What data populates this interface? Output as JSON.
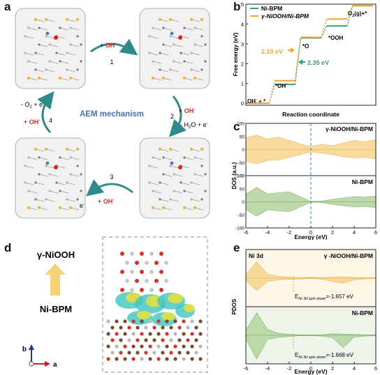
{
  "panels": {
    "a": "a",
    "b": "b",
    "c": "c",
    "d": "d",
    "e": "e"
  },
  "panel_a": {
    "center": "AEM mechanism",
    "step1": {
      "plus": "+ ",
      "species": "OH",
      "sup": "-",
      "num": "1"
    },
    "step2": {
      "plus": "+ ",
      "species": "OH",
      "sup": "-",
      "num": "2",
      "minus": "- H",
      "sub": "2",
      "rest": "O + e",
      "sup2": "-"
    },
    "step3": {
      "plus": "+ ",
      "species": "OH",
      "sup": "-",
      "num": "3",
      "e": "e",
      "esup": "-"
    },
    "step4": {
      "line1": "- O",
      "sub": "2",
      "line1b": " + e",
      "sup": "-",
      "plus": "+ ",
      "species": "OH",
      "sup2": "-",
      "num": "4"
    },
    "colors": {
      "oh": "#e0241b",
      "arrow": "#2f8a8a",
      "center": "#4a6fb0",
      "panel_bg": "#f2f1f0",
      "panel_border": "#9a9a9a"
    }
  },
  "panel_b": {
    "legend": [
      "Ni-BPM",
      "γ-NiOOH/Ni-BPM"
    ],
    "ylabel": "Free energy (eV)",
    "xlabel": "Reaction coordinate",
    "yticks": [
      "0",
      "1",
      "2",
      "3",
      "4",
      "5"
    ],
    "labels": {
      "start": "OH",
      "start_sup": "-",
      "start_rest": " + *",
      "oh": "*OH",
      "oh_sup": "-",
      "o": "*O",
      "ooh": "*OOH",
      "end": "O",
      "end_sub": "2",
      "end_rest": "(g)+*"
    },
    "barrier1": "2.19 eV",
    "barrier2": "2.35 eV",
    "colors": {
      "nibpm": "#3a9d7a",
      "niooh": "#f0a830"
    }
  },
  "chart_data": [
    {
      "type": "line",
      "title": "",
      "xlabel": "Reaction coordinate",
      "ylabel": "Free energy (eV)",
      "ylim": [
        -0.1,
        5
      ],
      "categories": [
        "OH- + *",
        "*OH-",
        "*O",
        "*OOH",
        "O2(g)+*"
      ],
      "series": [
        {
          "name": "Ni-BPM",
          "values": [
            0,
            0.95,
            3.3,
            3.9,
            4.92
          ]
        },
        {
          "name": "γ-NiOOH/Ni-BPM",
          "values": [
            0,
            1.14,
            3.33,
            4.25,
            4.92
          ]
        }
      ]
    },
    {
      "type": "area",
      "title": "",
      "xlabel": "Energy (eV)",
      "ylabel": "DOS (a.u.)",
      "xlim": [
        -6,
        6
      ],
      "ylim": [
        -100,
        100
      ],
      "series": [
        {
          "name": "γ-NiOOH/Ni-BPM",
          "x": [
            -6,
            -5,
            -4,
            -3,
            -2,
            -1,
            0,
            1,
            2,
            3,
            4,
            5,
            6
          ],
          "up": [
            45,
            55,
            40,
            48,
            35,
            22,
            12,
            20,
            15,
            25,
            35,
            30,
            38
          ],
          "down": [
            -45,
            -55,
            -42,
            -40,
            -30,
            -20,
            -10,
            -14,
            -20,
            -28,
            -32,
            -30,
            -36
          ]
        },
        {
          "name": "Ni-BPM",
          "x": [
            -6,
            -5,
            -4,
            -3,
            -2,
            -1,
            0,
            1,
            2,
            3,
            4,
            5,
            6
          ],
          "up": [
            30,
            55,
            30,
            35,
            38,
            20,
            2,
            3,
            10,
            15,
            20,
            18,
            22
          ],
          "down": [
            -30,
            -55,
            -30,
            -35,
            -38,
            -20,
            -2,
            -3,
            -10,
            -15,
            -20,
            -18,
            -22
          ]
        }
      ]
    },
    {
      "type": "area",
      "title": "",
      "xlabel": "Energy (eV)",
      "ylabel": "PDOS",
      "xlim": [
        -6,
        6
      ],
      "series": [
        {
          "name": "γ-NiOOH/Ni-BPM",
          "x": [
            -6,
            -5,
            -4,
            -3,
            -2,
            -1,
            0,
            1,
            2,
            3,
            4,
            5,
            6
          ],
          "up": [
            8,
            40,
            10,
            4,
            2,
            1,
            2,
            1,
            2,
            3,
            2,
            1,
            1
          ],
          "down": [
            -6,
            -30,
            -8,
            -4,
            -3,
            -2,
            -1,
            -2,
            -8,
            -12,
            -4,
            -2,
            -1
          ]
        },
        {
          "name": "Ni-BPM",
          "x": [
            -6,
            -5,
            -4,
            -3,
            -2,
            -1,
            0,
            1,
            2,
            3,
            4,
            5,
            6
          ],
          "up": [
            12,
            55,
            14,
            5,
            2,
            1,
            1,
            1,
            4,
            3,
            2,
            1,
            1
          ],
          "down": [
            -10,
            -58,
            -10,
            -5,
            -3,
            -1,
            -1,
            -2,
            -6,
            -30,
            -4,
            -2,
            -1
          ]
        }
      ]
    }
  ],
  "panel_c": {
    "yticks": [
      "100",
      "75",
      "50",
      "25",
      "0",
      "-25",
      "-50",
      "-75",
      "-100"
    ],
    "xticks": [
      "-6",
      "-4",
      "-2",
      "0",
      "2",
      "4",
      "6"
    ],
    "xlabel": "Energy (eV)",
    "ylabel": "DOS (a.u.)",
    "label_top": "γ-NiOOH/Ni-BPM",
    "label_bot": "Ni-BPM",
    "colors": {
      "top": "#f5c870",
      "bot": "#9cc48a"
    }
  },
  "panel_d": {
    "top": "γ-NiOOH",
    "bottom": "Ni-BPM",
    "axis_b": "b",
    "axis_a": "a"
  },
  "panel_e": {
    "xticks": [
      "-6",
      "-4",
      "-2",
      "0",
      "2",
      "4",
      "6"
    ],
    "xlabel": "Energy (eV)",
    "ylabel": "PDOS",
    "tag": "Ni 3d",
    "label_top": "γ -NiOOH/Ni-BPM",
    "label_bot": "Ni-BPM",
    "e_top_pre": "E",
    "e_top_sub": "Ni 3d spin down",
    "e_top_val": "=-1.657 eV",
    "e_bot_pre": "E",
    "e_bot_sub": "Ni 3d spin down",
    "e_bot_val": "=-1.668 eV"
  }
}
